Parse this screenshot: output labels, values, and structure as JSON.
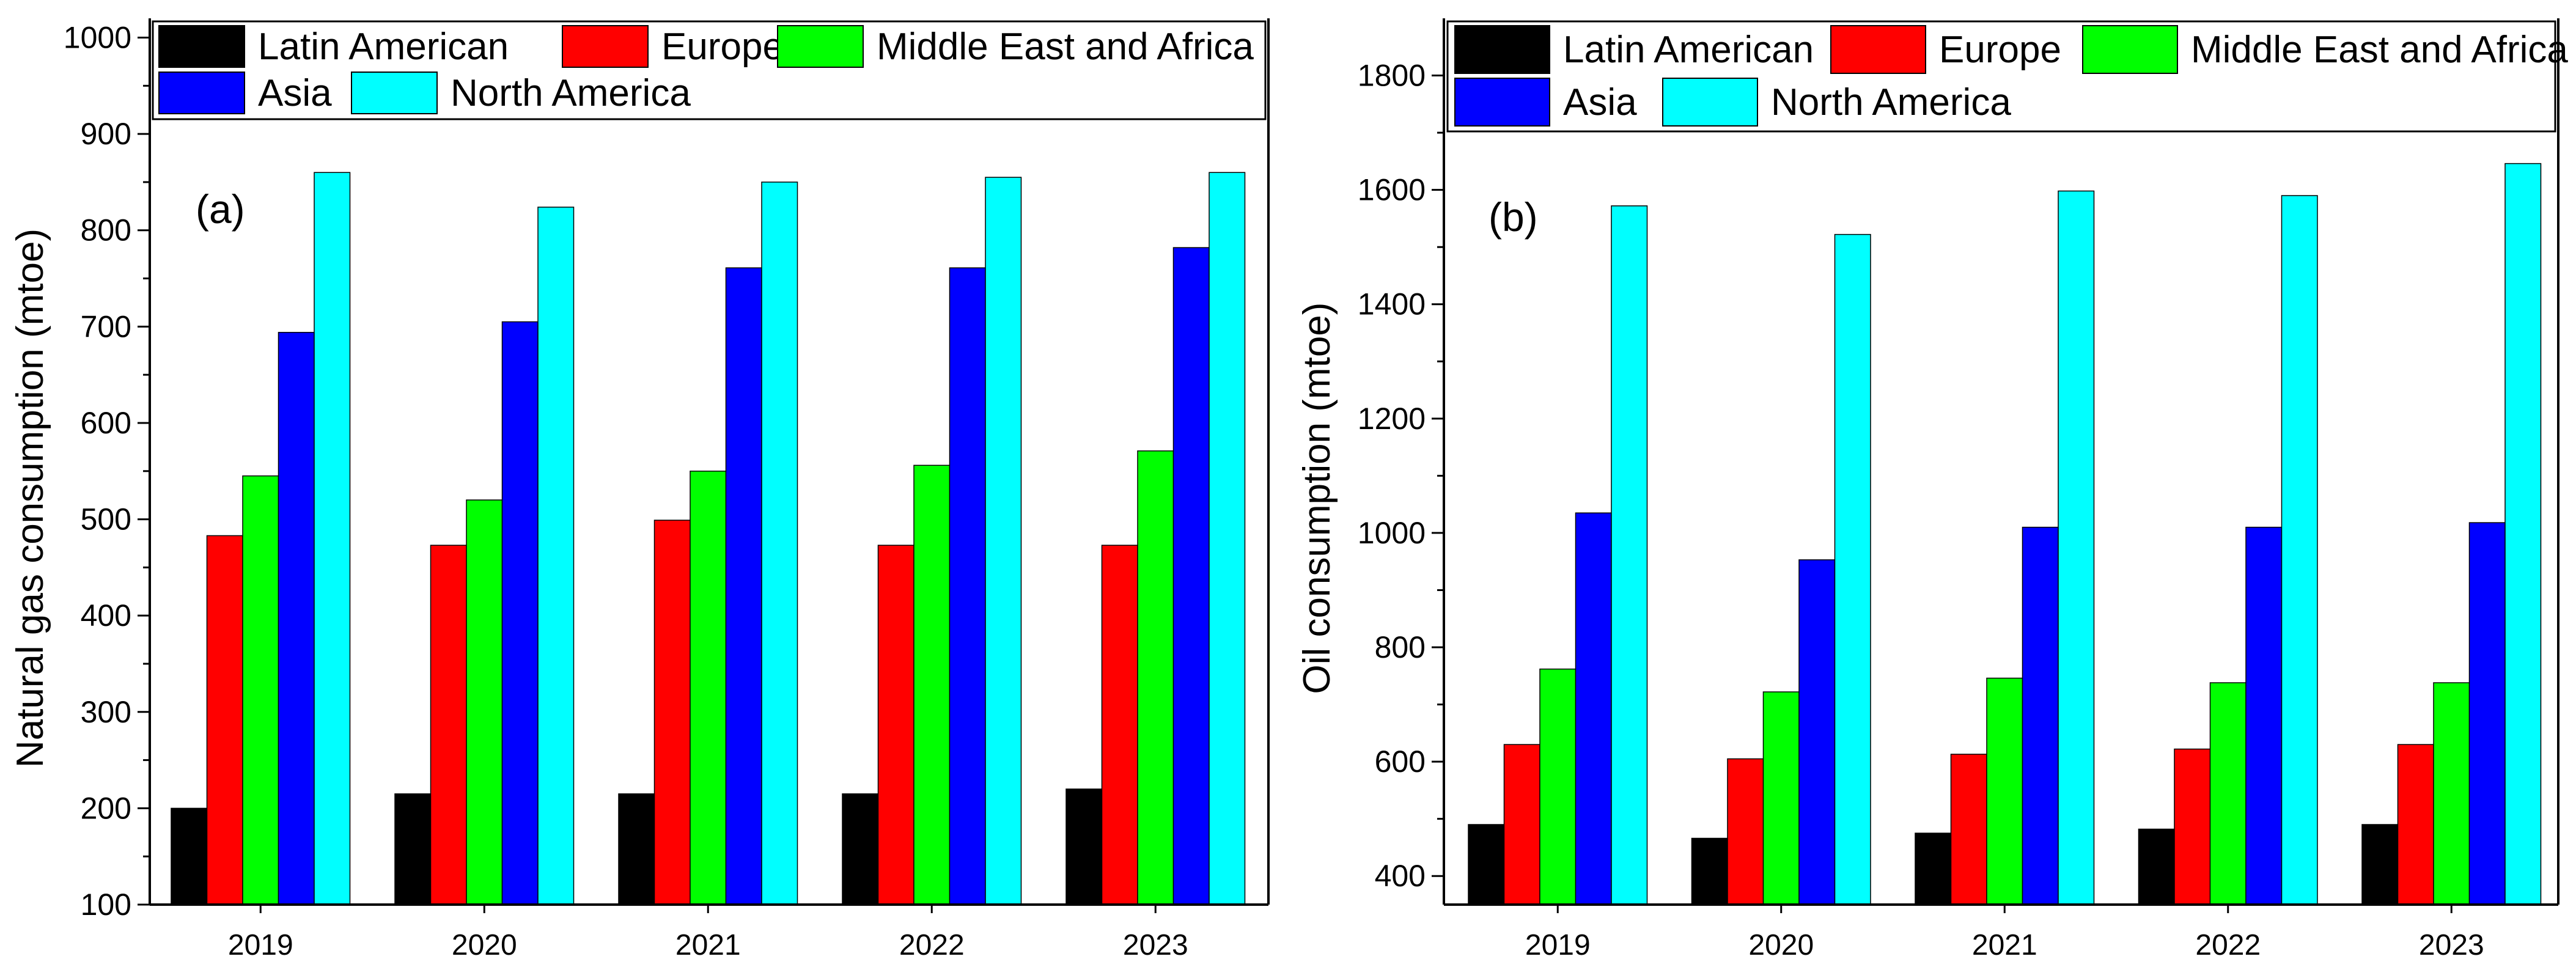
{
  "chart_data": [
    {
      "type": "bar",
      "panel_label": "(a)",
      "ylabel": "Natural gas consumption (mtoe)",
      "xlabel": "",
      "ylim": [
        100,
        1020
      ],
      "yticks": [
        100,
        200,
        300,
        400,
        500,
        600,
        700,
        800,
        900,
        1000
      ],
      "categories": [
        "2019",
        "2020",
        "2021",
        "2022",
        "2023"
      ],
      "legend_position": "top",
      "grid": false,
      "series": [
        {
          "name": "Latin American",
          "color": "#000000",
          "values": [
            200,
            215,
            215,
            215,
            220
          ]
        },
        {
          "name": "Europe",
          "color": "#ff0000",
          "values": [
            483,
            473,
            499,
            473,
            473
          ]
        },
        {
          "name": "Middle East and Africa",
          "color": "#00ff00",
          "values": [
            545,
            520,
            550,
            556,
            571
          ]
        },
        {
          "name": "Asia",
          "color": "#0000ff",
          "values": [
            694,
            705,
            761,
            761,
            782
          ]
        },
        {
          "name": "North America",
          "color": "#00ffff",
          "values": [
            860,
            824,
            850,
            855,
            860
          ]
        }
      ]
    },
    {
      "type": "bar",
      "panel_label": "(b)",
      "ylabel": "Oil consumption (mtoe)",
      "xlabel": "",
      "ylim": [
        350,
        1900
      ],
      "yticks": [
        400,
        600,
        800,
        1000,
        1200,
        1400,
        1600,
        1800
      ],
      "categories": [
        "2019",
        "2020",
        "2021",
        "2022",
        "2023"
      ],
      "legend_position": "top",
      "grid": false,
      "series": [
        {
          "name": "Latin American",
          "color": "#000000",
          "values": [
            490,
            466,
            475,
            482,
            490
          ]
        },
        {
          "name": "Europe",
          "color": "#ff0000",
          "values": [
            630,
            605,
            613,
            622,
            630
          ]
        },
        {
          "name": "Middle East and Africa",
          "color": "#00ff00",
          "values": [
            762,
            722,
            746,
            738,
            738
          ]
        },
        {
          "name": "Asia",
          "color": "#0000ff",
          "values": [
            1035,
            953,
            1010,
            1010,
            1018
          ]
        },
        {
          "name": "North America",
          "color": "#00ffff",
          "values": [
            1572,
            1522,
            1598,
            1590,
            1646
          ]
        }
      ]
    }
  ]
}
